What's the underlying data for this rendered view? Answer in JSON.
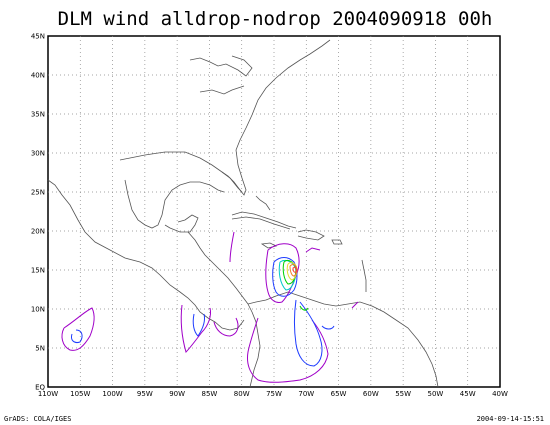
{
  "title": "DLM wind alldrop-nodrop 2004090918 00h",
  "footer": {
    "left": "GrADS: COLA/IGES",
    "right": "2004-09-14-15:51"
  },
  "axes": {
    "x_ticks": [
      "110W",
      "105W",
      "100W",
      "95W",
      "90W",
      "85W",
      "80W",
      "75W",
      "70W",
      "65W",
      "60W",
      "55W",
      "50W",
      "45W",
      "40W"
    ],
    "y_ticks": [
      "EQ",
      "5N",
      "10N",
      "15N",
      "20N",
      "25N",
      "30N",
      "35N",
      "40N",
      "45N"
    ],
    "lon_range": [
      -110,
      -40
    ],
    "lat_range": [
      0,
      45
    ],
    "grid": "dotted"
  },
  "contour_colors": {
    "purple": "#a000c8",
    "blue": "#1e3cff",
    "cyan": "#00c8c8",
    "green": "#00d200",
    "yellow": "#e6dc32",
    "orange": "#f08228",
    "red": "#fa3c3c"
  }
}
